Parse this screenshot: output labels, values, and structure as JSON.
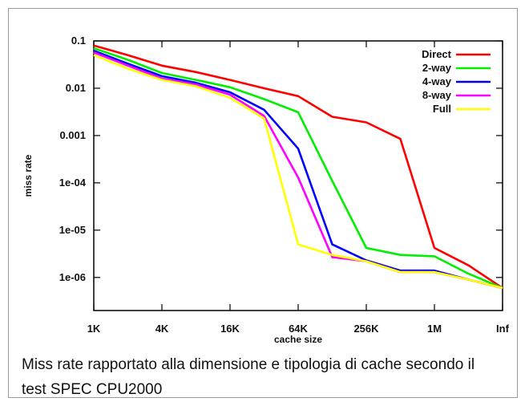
{
  "chart_data": {
    "type": "line",
    "title": "",
    "xlabel": "cache size",
    "ylabel": "miss rate",
    "x_scale": "categorical",
    "y_scale": "log",
    "categories": [
      "1K",
      "",
      "4K",
      "",
      "16K",
      "",
      "64K",
      "",
      "256K",
      "",
      "1M",
      "",
      "Inf"
    ],
    "x_tick_labels": [
      "1K",
      "4K",
      "16K",
      "64K",
      "256K",
      "1M",
      "Inf"
    ],
    "y_tick_labels": [
      "0.1",
      "0.01",
      "0.001",
      "1e-04",
      "1e-05",
      "1e-06"
    ],
    "ylim": [
      2e-07,
      0.1
    ],
    "grid": false,
    "legend_position": "top-right",
    "series": [
      {
        "name": "Direct",
        "color": "#ff0000",
        "values": [
          0.08,
          0.05,
          0.03,
          0.022,
          0.015,
          0.01,
          0.0068,
          0.0025,
          0.0019,
          0.00085,
          4.2e-06,
          1.8e-06,
          6e-07
        ]
      },
      {
        "name": "2-way",
        "color": "#00ee00",
        "values": [
          0.07,
          0.04,
          0.021,
          0.015,
          0.0105,
          0.0059,
          0.0031,
          0.00011,
          4.2e-06,
          3e-06,
          2.8e-06,
          1.2e-06,
          6e-07
        ]
      },
      {
        "name": "4-way",
        "color": "#0000ff",
        "values": [
          0.062,
          0.033,
          0.018,
          0.013,
          0.0082,
          0.0035,
          0.00053,
          5e-06,
          2.3e-06,
          1.4e-06,
          1.4e-06,
          9e-07,
          6e-07
        ]
      },
      {
        "name": "8-way",
        "color": "#ff00ff",
        "values": [
          0.057,
          0.03,
          0.016,
          0.012,
          0.0073,
          0.0026,
          0.00013,
          2.7e-06,
          2.2e-06,
          1.3e-06,
          1.3e-06,
          9e-07,
          6e-07
        ]
      },
      {
        "name": "Full",
        "color": "#ffff00",
        "values": [
          0.05,
          0.026,
          0.015,
          0.011,
          0.0063,
          0.0023,
          5e-06,
          3e-06,
          2.2e-06,
          1.3e-06,
          1.3e-06,
          9e-07,
          6e-07
        ]
      }
    ]
  },
  "caption": "Miss rate rapportato alla dimensione e tipologia di cache secondo il test SPEC CPU2000"
}
